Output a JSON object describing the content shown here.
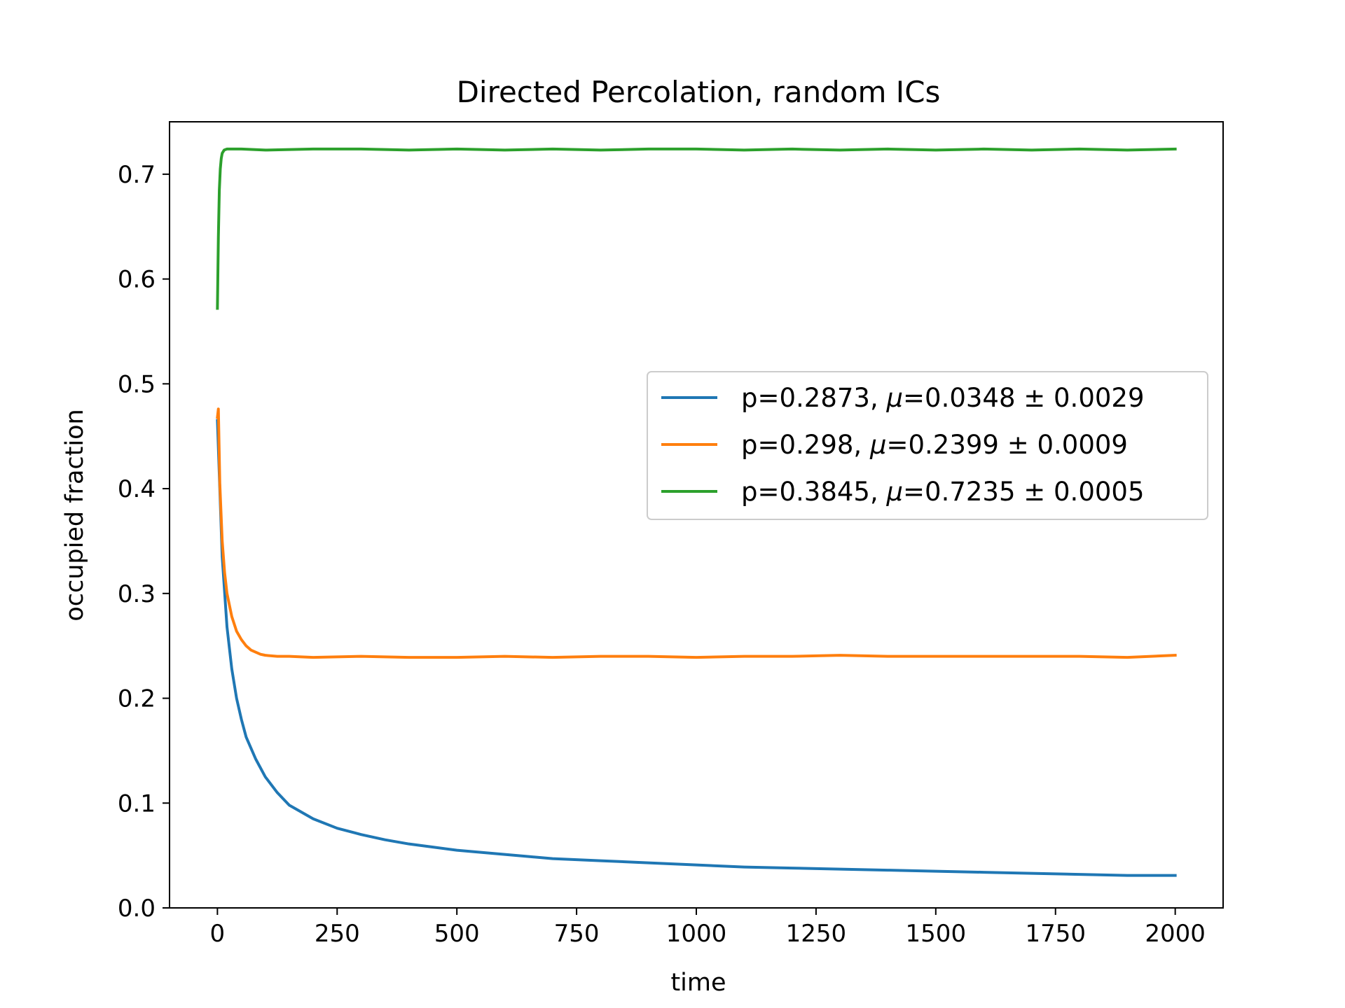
{
  "chart_data": {
    "type": "line",
    "title": "Directed Percolation, random ICs",
    "xlabel": "time",
    "ylabel": "occupied fraction",
    "xlim": [
      -100,
      2100
    ],
    "ylim": [
      0.0,
      0.75
    ],
    "xticks": [
      0,
      250,
      500,
      750,
      1000,
      1250,
      1500,
      1750,
      2000
    ],
    "xtick_labels": [
      "0",
      "250",
      "500",
      "750",
      "1000",
      "1250",
      "1500",
      "1750",
      "2000"
    ],
    "yticks": [
      0.0,
      0.1,
      0.2,
      0.3,
      0.4,
      0.5,
      0.6,
      0.7
    ],
    "ytick_labels": [
      "0.0",
      "0.1",
      "0.2",
      "0.3",
      "0.4",
      "0.5",
      "0.6",
      "0.7"
    ],
    "grid": false,
    "legend_position": "center-right",
    "series": [
      {
        "name": "p=0.2873, μ=0.0348 ± 0.0029",
        "label_parts": {
          "p": "p=0.2873, ",
          "mu": "μ",
          "rest": "=0.0348 ± 0.0029"
        },
        "color": "#1f77b4",
        "x": [
          0,
          10,
          20,
          30,
          40,
          50,
          60,
          80,
          100,
          125,
          150,
          200,
          250,
          300,
          350,
          400,
          450,
          500,
          550,
          600,
          650,
          700,
          750,
          800,
          900,
          1000,
          1100,
          1200,
          1300,
          1400,
          1500,
          1600,
          1700,
          1800,
          1900,
          2000
        ],
        "y": [
          0.465,
          0.335,
          0.268,
          0.228,
          0.2,
          0.18,
          0.163,
          0.142,
          0.125,
          0.11,
          0.098,
          0.085,
          0.076,
          0.07,
          0.065,
          0.061,
          0.058,
          0.055,
          0.053,
          0.051,
          0.049,
          0.047,
          0.046,
          0.045,
          0.043,
          0.041,
          0.039,
          0.038,
          0.037,
          0.036,
          0.035,
          0.034,
          0.033,
          0.032,
          0.031,
          0.031
        ]
      },
      {
        "name": "p=0.298, μ=0.2399 ± 0.0009",
        "label_parts": {
          "p": "p=0.298, ",
          "mu": "μ",
          "rest": "=0.2399 ± 0.0009"
        },
        "color": "#ff7f0e",
        "x": [
          0,
          2,
          5,
          10,
          15,
          20,
          30,
          40,
          50,
          60,
          70,
          80,
          90,
          100,
          125,
          150,
          200,
          300,
          400,
          500,
          600,
          700,
          800,
          900,
          1000,
          1100,
          1200,
          1300,
          1400,
          1500,
          1600,
          1700,
          1800,
          1900,
          2000
        ],
        "y": [
          0.468,
          0.476,
          0.405,
          0.35,
          0.32,
          0.3,
          0.278,
          0.264,
          0.256,
          0.25,
          0.246,
          0.244,
          0.242,
          0.241,
          0.24,
          0.24,
          0.239,
          0.24,
          0.239,
          0.239,
          0.24,
          0.239,
          0.24,
          0.24,
          0.239,
          0.24,
          0.24,
          0.241,
          0.24,
          0.24,
          0.24,
          0.24,
          0.24,
          0.239,
          0.241
        ]
      },
      {
        "name": "p=0.3845, μ=0.7235 ± 0.0005",
        "label_parts": {
          "p": "p=0.3845, ",
          "mu": "μ",
          "rest": "=0.7235 ± 0.0005"
        },
        "color": "#2ca02c",
        "x": [
          0,
          2,
          4,
          6,
          8,
          10,
          14,
          20,
          30,
          50,
          100,
          200,
          300,
          400,
          500,
          600,
          700,
          800,
          900,
          1000,
          1100,
          1200,
          1300,
          1400,
          1500,
          1600,
          1700,
          1800,
          1900,
          2000
        ],
        "y": [
          0.572,
          0.64,
          0.685,
          0.705,
          0.715,
          0.72,
          0.723,
          0.724,
          0.724,
          0.724,
          0.723,
          0.724,
          0.724,
          0.723,
          0.724,
          0.723,
          0.724,
          0.723,
          0.724,
          0.724,
          0.723,
          0.724,
          0.723,
          0.724,
          0.723,
          0.724,
          0.723,
          0.724,
          0.723,
          0.724
        ]
      }
    ]
  }
}
